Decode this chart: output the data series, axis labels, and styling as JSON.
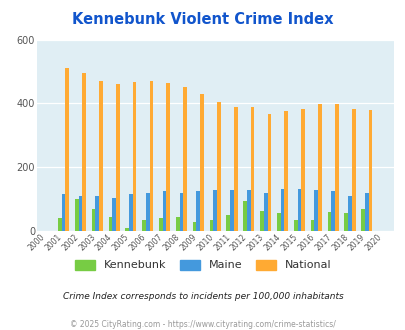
{
  "title": "Kennebunk Violent Crime Index",
  "years": [
    2000,
    2001,
    2002,
    2003,
    2004,
    2005,
    2006,
    2007,
    2008,
    2009,
    2010,
    2011,
    2012,
    2013,
    2014,
    2015,
    2016,
    2017,
    2018,
    2019,
    2020
  ],
  "kennebunk": [
    0,
    40,
    100,
    70,
    45,
    10,
    35,
    40,
    45,
    28,
    35,
    50,
    95,
    62,
    55,
    35,
    35,
    60,
    55,
    70,
    0
  ],
  "maine": [
    0,
    115,
    110,
    110,
    105,
    115,
    120,
    125,
    120,
    125,
    128,
    128,
    128,
    120,
    132,
    132,
    128,
    125,
    110,
    120,
    0
  ],
  "national": [
    0,
    510,
    495,
    470,
    460,
    468,
    470,
    465,
    450,
    430,
    405,
    390,
    390,
    367,
    375,
    382,
    398,
    397,
    382,
    379,
    0
  ],
  "bar_colors": {
    "kennebunk": "#77cc44",
    "maine": "#4499dd",
    "national": "#ffaa33"
  },
  "background_color": "#ffffff",
  "plot_bg": "#e0eef4",
  "ylim": [
    0,
    600
  ],
  "yticks": [
    0,
    200,
    400,
    600
  ],
  "title_color": "#1155cc",
  "title_fontsize": 10.5,
  "footnote1": "Crime Index corresponds to incidents per 100,000 inhabitants",
  "footnote2": "© 2025 CityRating.com - https://www.cityrating.com/crime-statistics/",
  "legend_labels": [
    "Kennebunk",
    "Maine",
    "National"
  ]
}
